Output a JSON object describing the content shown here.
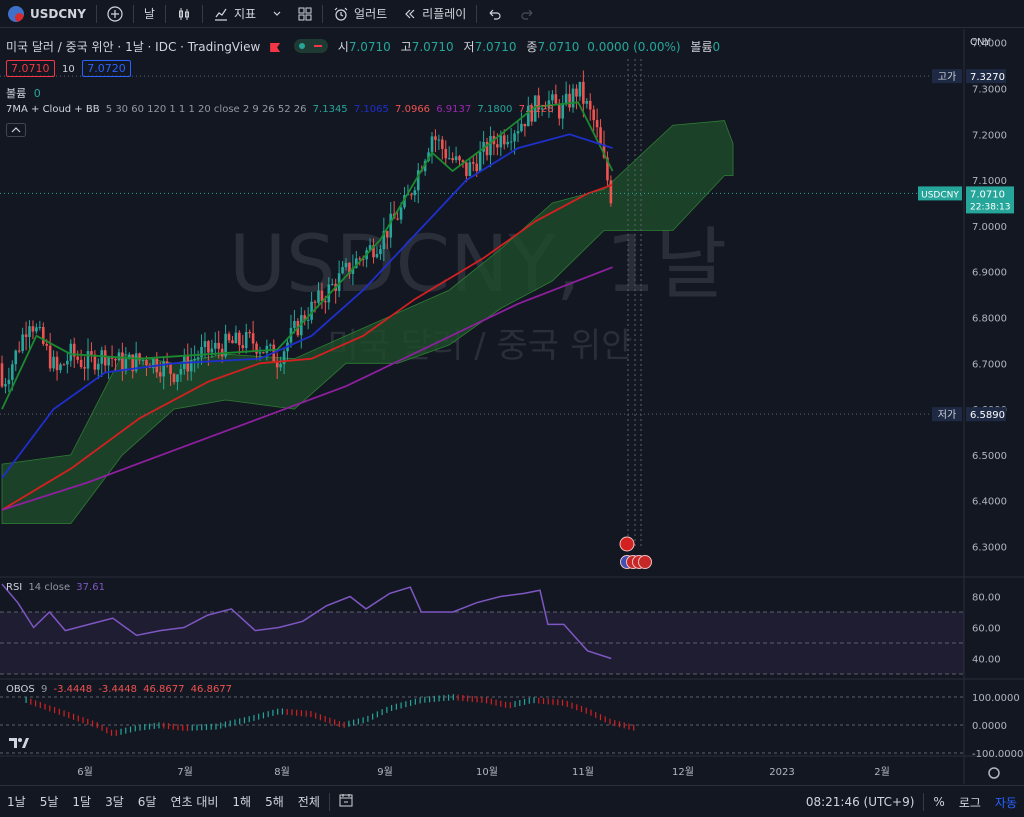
{
  "toolbar": {
    "symbol": "USDCNY",
    "interval": "날",
    "indicators_label": "지표",
    "alert_label": "얼러트",
    "replay_label": "리플레이"
  },
  "legend": {
    "title": "미국 달러 / 중국 위안 · 1날 · IDC · TradingView",
    "open_label": "시",
    "open": "7.0710",
    "high_label": "고",
    "high": "7.0710",
    "low_label": "저",
    "low": "7.0710",
    "close_label": "종",
    "close": "7.0710",
    "change": "0.0000 (0.00%)",
    "volume_label": "볼륨",
    "bid": "7.0710",
    "spread": "10",
    "ask": "7.0720",
    "volume_row_label": "볼륨",
    "volume_row_value": "0",
    "ma_name": "7MA + Cloud + BB",
    "ma_params": "5 30 60 120 1 1 1 20 close 2 9 26 52 26",
    "ma_values": [
      "7.1345",
      "7.1065",
      "7.0966",
      "6.9137",
      "7.1800",
      "7.1128"
    ],
    "rsi_name": "RSI",
    "rsi_params": "14 close",
    "rsi_value": "37.61",
    "obos_name": "OBOS",
    "obos_params": "9",
    "obos_values": [
      "-3.4448",
      "-3.4448",
      "46.8677",
      "46.8677"
    ]
  },
  "watermark": {
    "symbol": "USDCNY, 1날",
    "name": "미국 달러 / 중국 위안"
  },
  "price_axis": {
    "currency": "CNY",
    "high_label": "고가",
    "high_value": "7.3270",
    "low_label": "저가",
    "low_value": "6.5890",
    "last_symbol": "USDCNY",
    "last_value": "7.0710",
    "countdown": "22:38:13"
  },
  "colors": {
    "bg": "#131722",
    "up": "#26a69a",
    "down": "#ef5350",
    "ma_green": "#1b8a2e",
    "ma_blue": "#1e2fcc",
    "ma_red": "#d32020",
    "ma_purple": "#8e1fa0",
    "cloud": "#1e4d2b",
    "rsi": "#7e57c2"
  },
  "chart_data": {
    "type": "candlestick",
    "title": "미국 달러 / 중국 위안 · 1날 · IDC · TradingView",
    "x_ticks": [
      "6월",
      "7월",
      "8월",
      "9월",
      "10월",
      "11월",
      "12월",
      "2023",
      "2월"
    ],
    "ylim": [
      6.24,
      7.43
    ],
    "y_ticks": [
      "7.4000",
      "7.3000",
      "7.2000",
      "7.1000",
      "7.0000",
      "6.9000",
      "6.8000",
      "6.7000",
      "6.6000",
      "6.5000",
      "6.4000",
      "6.3000"
    ],
    "ohlc_start": 6.7,
    "ohlc_trend": [
      [
        0,
        6.65
      ],
      [
        8,
        6.72
      ],
      [
        16,
        6.8
      ],
      [
        24,
        6.74
      ],
      [
        32,
        6.68
      ],
      [
        40,
        6.72
      ],
      [
        48,
        6.7
      ],
      [
        60,
        6.72
      ],
      [
        70,
        6.7
      ],
      [
        85,
        6.71
      ],
      [
        100,
        6.68
      ],
      [
        115,
        6.72
      ],
      [
        130,
        6.74
      ],
      [
        145,
        6.75
      ],
      [
        160,
        6.71
      ],
      [
        175,
        6.8
      ],
      [
        190,
        6.86
      ],
      [
        205,
        6.92
      ],
      [
        220,
        6.97
      ],
      [
        235,
        7.05
      ],
      [
        250,
        7.2
      ],
      [
        260,
        7.15
      ],
      [
        270,
        7.12
      ],
      [
        285,
        7.18
      ],
      [
        300,
        7.22
      ],
      [
        315,
        7.28
      ],
      [
        325,
        7.25
      ],
      [
        335,
        7.3
      ],
      [
        345,
        7.22
      ],
      [
        355,
        7.05
      ]
    ],
    "ma_series": [
      {
        "name": "MA5",
        "color": "#1b8a2e",
        "values": [
          [
            0,
            6.6
          ],
          [
            20,
            6.76
          ],
          [
            40,
            6.72
          ],
          [
            80,
            6.71
          ],
          [
            120,
            6.72
          ],
          [
            160,
            6.73
          ],
          [
            190,
            6.85
          ],
          [
            220,
            6.97
          ],
          [
            250,
            7.16
          ],
          [
            262,
            7.12
          ],
          [
            280,
            7.17
          ],
          [
            310,
            7.26
          ],
          [
            335,
            7.27
          ],
          [
            355,
            7.12
          ]
        ]
      },
      {
        "name": "MA30",
        "color": "#1e2fcc",
        "values": [
          [
            0,
            6.45
          ],
          [
            30,
            6.6
          ],
          [
            60,
            6.68
          ],
          [
            100,
            6.7
          ],
          [
            150,
            6.71
          ],
          [
            180,
            6.76
          ],
          [
            210,
            6.86
          ],
          [
            240,
            6.98
          ],
          [
            270,
            7.1
          ],
          [
            300,
            7.17
          ],
          [
            330,
            7.2
          ],
          [
            355,
            7.17
          ]
        ]
      },
      {
        "name": "MA60",
        "color": "#d32020",
        "values": [
          [
            0,
            6.38
          ],
          [
            40,
            6.47
          ],
          [
            80,
            6.58
          ],
          [
            120,
            6.66
          ],
          [
            150,
            6.7
          ],
          [
            180,
            6.71
          ],
          [
            210,
            6.76
          ],
          [
            240,
            6.84
          ],
          [
            280,
            6.93
          ],
          [
            310,
            7.01
          ],
          [
            340,
            7.07
          ],
          [
            355,
            7.09
          ]
        ]
      },
      {
        "name": "MA120",
        "color": "#8e1fa0",
        "values": [
          [
            0,
            6.38
          ],
          [
            50,
            6.44
          ],
          [
            100,
            6.51
          ],
          [
            150,
            6.58
          ],
          [
            200,
            6.65
          ],
          [
            250,
            6.74
          ],
          [
            300,
            6.83
          ],
          [
            355,
            6.91
          ]
        ]
      }
    ],
    "cloud": {
      "upper": [
        [
          0,
          6.48
        ],
        [
          40,
          6.5
        ],
        [
          70,
          6.72
        ],
        [
          100,
          6.7
        ],
        [
          130,
          6.72
        ],
        [
          170,
          6.71
        ],
        [
          200,
          6.76
        ],
        [
          230,
          6.81
        ],
        [
          260,
          6.86
        ],
        [
          290,
          6.95
        ],
        [
          320,
          7.05
        ],
        [
          350,
          7.08
        ],
        [
          390,
          7.22
        ],
        [
          420,
          7.23
        ],
        [
          425,
          7.18
        ]
      ],
      "lower": [
        [
          0,
          6.35
        ],
        [
          40,
          6.35
        ],
        [
          70,
          6.5
        ],
        [
          100,
          6.6
        ],
        [
          130,
          6.62
        ],
        [
          170,
          6.6
        ],
        [
          200,
          6.7
        ],
        [
          230,
          6.7
        ],
        [
          260,
          6.74
        ],
        [
          290,
          6.82
        ],
        [
          320,
          6.88
        ],
        [
          350,
          6.99
        ],
        [
          390,
          6.99
        ],
        [
          420,
          7.11
        ],
        [
          425,
          7.11
        ]
      ]
    },
    "rsi": {
      "ylim": [
        30,
        90
      ],
      "ticks": [
        "80.00",
        "60.00",
        "40.00"
      ],
      "band": [
        30,
        70
      ],
      "values": [
        [
          0,
          88
        ],
        [
          10,
          76
        ],
        [
          20,
          60
        ],
        [
          30,
          70
        ],
        [
          40,
          58
        ],
        [
          55,
          62
        ],
        [
          70,
          66
        ],
        [
          85,
          55
        ],
        [
          100,
          58
        ],
        [
          115,
          60
        ],
        [
          130,
          68
        ],
        [
          145,
          72
        ],
        [
          160,
          58
        ],
        [
          175,
          60
        ],
        [
          190,
          64
        ],
        [
          205,
          74
        ],
        [
          220,
          80
        ],
        [
          230,
          72
        ],
        [
          245,
          82
        ],
        [
          258,
          86
        ],
        [
          265,
          70
        ],
        [
          285,
          70
        ],
        [
          300,
          76
        ],
        [
          315,
          80
        ],
        [
          330,
          82
        ],
        [
          340,
          84
        ],
        [
          345,
          62
        ],
        [
          355,
          62
        ],
        [
          370,
          45
        ],
        [
          385,
          40
        ]
      ]
    },
    "obos": {
      "ylim": [
        -100,
        150
      ],
      "ticks": [
        "100.0000",
        "0.0000",
        "-100.0000"
      ],
      "values": [
        [
          0,
          100
        ],
        [
          15,
          70
        ],
        [
          30,
          40
        ],
        [
          45,
          10
        ],
        [
          55,
          -20
        ],
        [
          70,
          0
        ],
        [
          85,
          10
        ],
        [
          100,
          0
        ],
        [
          120,
          5
        ],
        [
          140,
          30
        ],
        [
          160,
          60
        ],
        [
          180,
          50
        ],
        [
          200,
          10
        ],
        [
          215,
          30
        ],
        [
          230,
          70
        ],
        [
          250,
          100
        ],
        [
          270,
          110
        ],
        [
          290,
          100
        ],
        [
          305,
          80
        ],
        [
          320,
          100
        ],
        [
          340,
          90
        ],
        [
          355,
          60
        ],
        [
          370,
          20
        ],
        [
          385,
          0
        ]
      ]
    }
  },
  "time_axis_settings_icon": "gear-icon",
  "bottombar": {
    "ranges": [
      "1날",
      "5날",
      "1달",
      "3달",
      "6달",
      "연초 대비",
      "1해",
      "5해",
      "전체"
    ],
    "time": "08:21:46 (UTC+9)",
    "percent": "%",
    "log": "로그",
    "auto": "자동"
  }
}
